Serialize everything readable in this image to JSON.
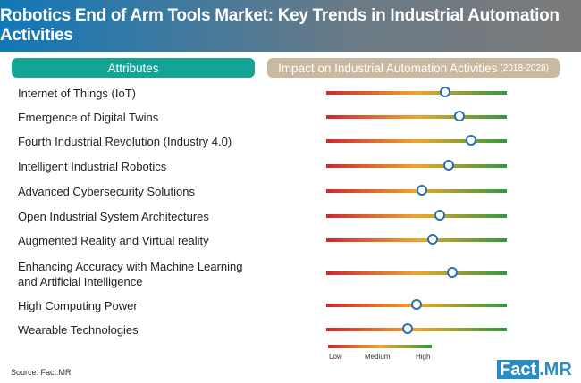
{
  "chart_data": {
    "type": "dot-scale",
    "title": "Robotics End of Arm Tools Market: Key Trends in Industrial Automation Activities",
    "column_headers": {
      "attributes": "Attributes",
      "impact": "Impact on Industrial Automation Activities",
      "impact_period": "(2018-2028)"
    },
    "categories": [
      "Internet of Things (IoT)",
      "Emergence of Digital Twins",
      "Fourth Industrial Revolution (Industry 4.0)",
      "Intelligent Industrial Robotics",
      "Advanced Cybersecurity Solutions",
      "Open Industrial System Architectures",
      "Augmented Reality and Virtual reality",
      "Enhancing Accuracy with Machine Learning\nand Artificial Intelligence",
      "High Computing Power",
      "Wearable Technologies"
    ],
    "values": [
      0.66,
      0.74,
      0.8,
      0.68,
      0.53,
      0.63,
      0.59,
      0.7,
      0.5,
      0.45
    ],
    "scale": {
      "range": [
        0,
        1
      ],
      "labels": [
        "Low",
        "Medium",
        "High"
      ],
      "colors": [
        "#d0272e",
        "#f0a52c",
        "#2e9a3e"
      ]
    }
  },
  "source": "Source: Fact.MR",
  "logo": {
    "part1": "Fact",
    "part2": ".MR"
  }
}
